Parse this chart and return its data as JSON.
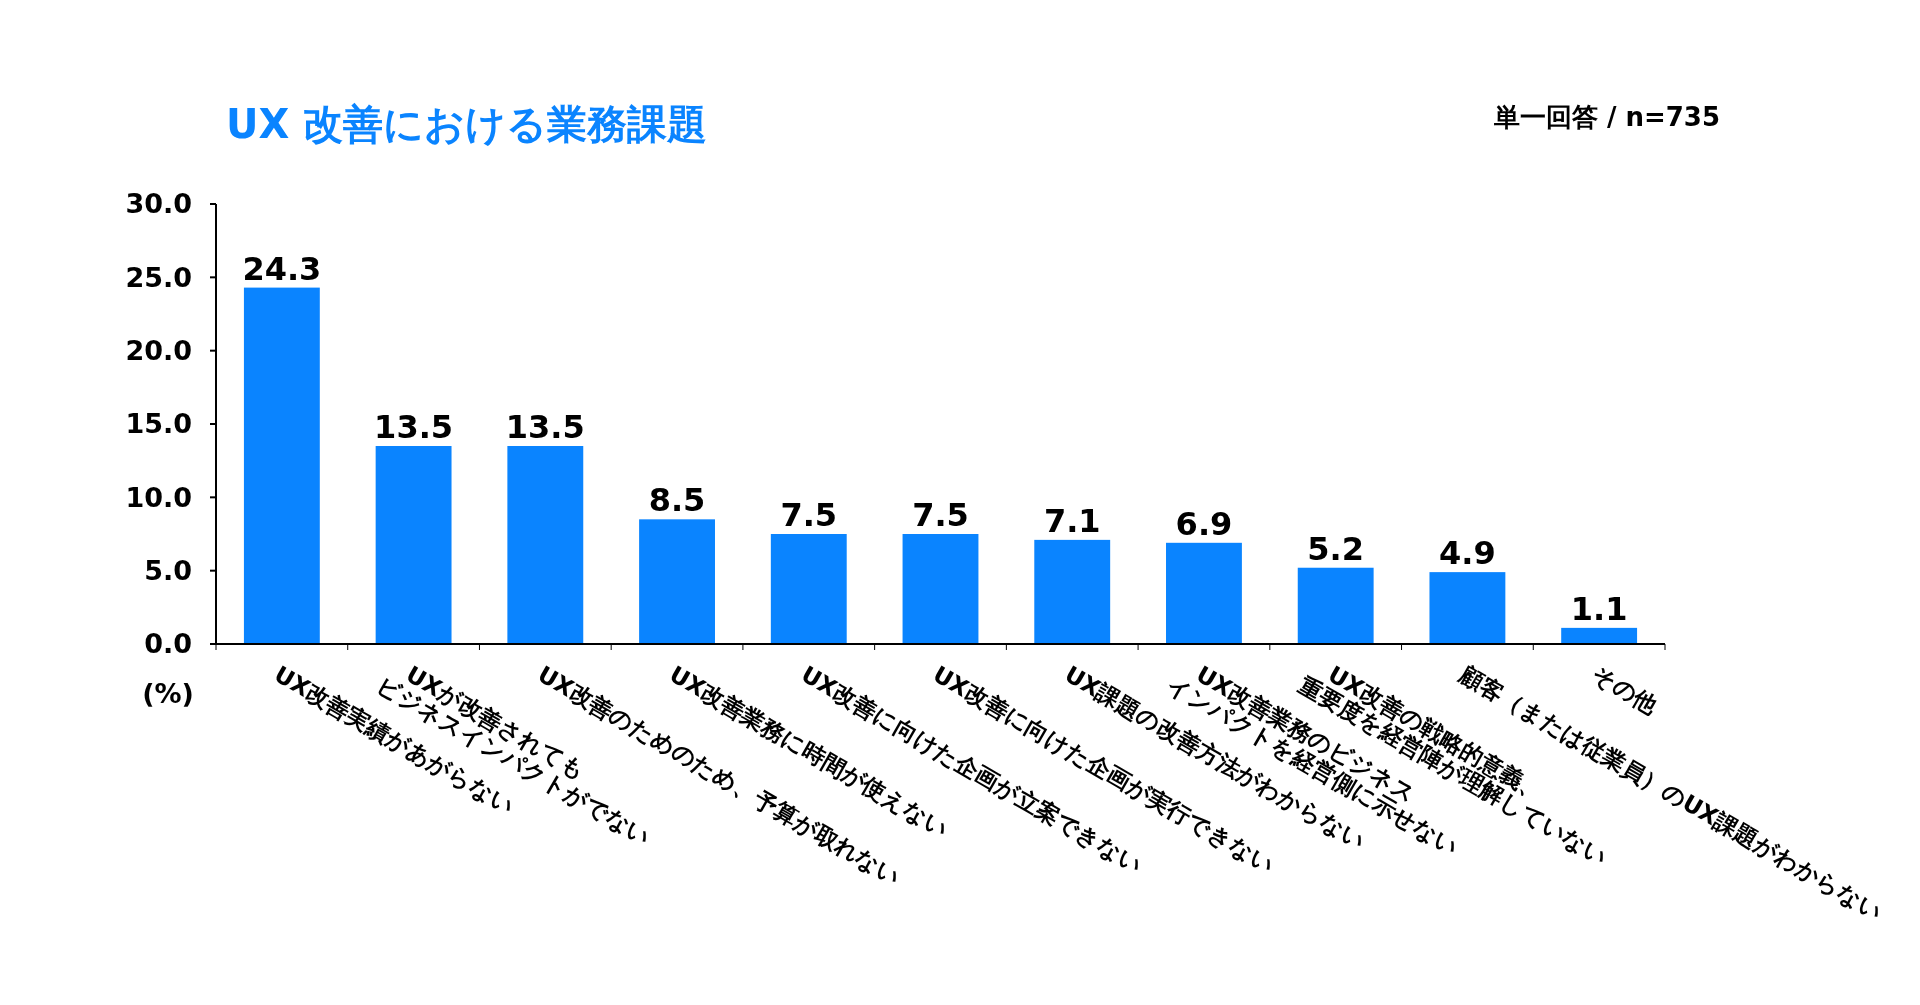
{
  "chart_data": {
    "type": "bar",
    "title": "UX 改善における業務課題",
    "subtitle": "単一回答 / n=735",
    "ylabel": "(%)",
    "categories": [
      "UX改善実績があがらない",
      "UXが改善されても\nビジネスインパクトがでない",
      "UX改善のためのため、予算が取れない",
      "UX改善業務に時間が使えない",
      "UX改善に向けた企画が立案できない",
      "UX改善に向けた企画が実行できない",
      "UX課題の改善方法がわからない",
      "UX改善業務のビジネス\nインパクトを経営側に示せない",
      "UX改善の戦略的意義、\n重要度を経営陣が理解していない",
      "顧客（または従業員）のUX課題がわからない",
      "その他"
    ],
    "values": [
      24.3,
      13.5,
      13.5,
      8.5,
      7.5,
      7.5,
      7.1,
      6.9,
      5.2,
      4.9,
      1.1
    ],
    "color": "#0a84ff",
    "data_labels": true,
    "grid": false,
    "ylim": [
      0,
      30
    ],
    "yticks": [
      {
        "value": 0,
        "label": "0.0"
      },
      {
        "value": 5,
        "label": "5.0"
      },
      {
        "value": 10,
        "label": "10.0"
      },
      {
        "value": 15,
        "label": "15.0"
      },
      {
        "value": 20,
        "label": "20.0"
      },
      {
        "value": 25,
        "label": "25.0"
      },
      {
        "value": 30,
        "label": "30.0"
      }
    ]
  }
}
